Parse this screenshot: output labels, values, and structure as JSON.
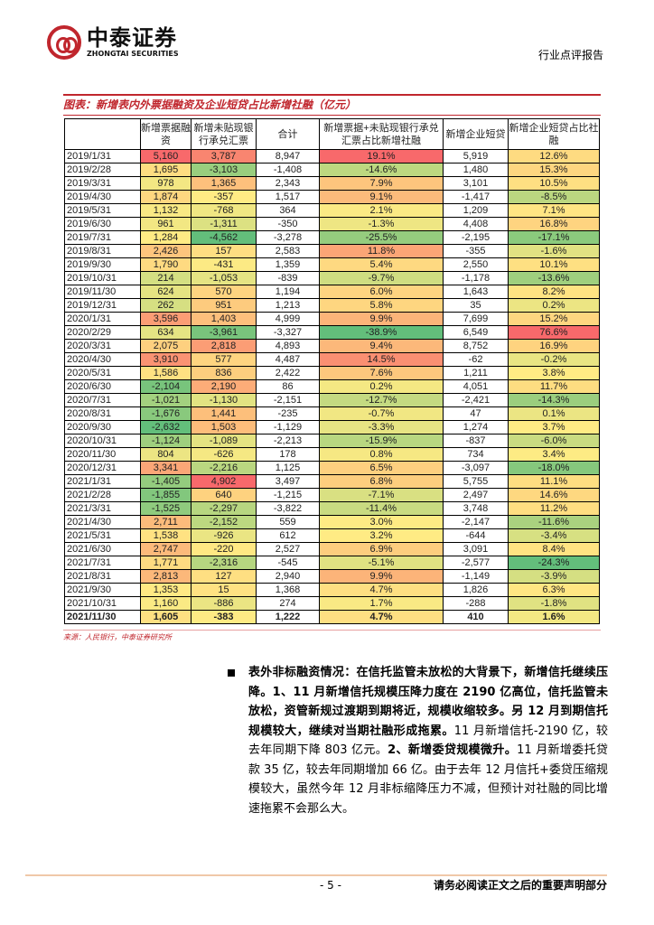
{
  "header": {
    "logo_cn": "中泰证券",
    "logo_en": "ZHONGTAI SECURITIES",
    "report_type": "行业点评报告"
  },
  "figure": {
    "title": "图表：新增表内外票据融资及企业短贷占比新增社融（亿元）",
    "columns": [
      "",
      "新增票据融资",
      "新增未贴现银行承兑汇票",
      "合计",
      "新增票据+未贴现银行承兑汇票占比新增社融",
      "新增企业短贷",
      "新增企业短贷占比社融"
    ],
    "rows": [
      [
        "2019/1/31",
        "5,160",
        "3,787",
        "8,947",
        "19.1%",
        "5,919",
        "12.6%"
      ],
      [
        "2019/2/28",
        "1,695",
        "-3,103",
        "-1,408",
        "-14.6%",
        "1,480",
        "15.3%"
      ],
      [
        "2019/3/31",
        "978",
        "1,365",
        "2,343",
        "7.9%",
        "3,101",
        "10.5%"
      ],
      [
        "2019/4/30",
        "1,874",
        "-357",
        "1,517",
        "9.1%",
        "-1,417",
        "-8.5%"
      ],
      [
        "2019/5/31",
        "1,132",
        "-768",
        "364",
        "2.1%",
        "1,209",
        "7.1%"
      ],
      [
        "2019/6/30",
        "961",
        "-1,311",
        "-350",
        "-1.3%",
        "4,408",
        "16.8%"
      ],
      [
        "2019/7/31",
        "1,284",
        "-4,562",
        "-3,278",
        "-25.5%",
        "-2,195",
        "-17.1%"
      ],
      [
        "2019/8/31",
        "2,426",
        "157",
        "2,583",
        "11.8%",
        "-355",
        "-1.6%"
      ],
      [
        "2019/9/30",
        "1,790",
        "-431",
        "1,359",
        "5.4%",
        "2,550",
        "10.1%"
      ],
      [
        "2019/10/31",
        "214",
        "-1,053",
        "-839",
        "-9.7%",
        "-1,178",
        "-13.6%"
      ],
      [
        "2019/11/30",
        "624",
        "570",
        "1,194",
        "6.0%",
        "1,643",
        "8.2%"
      ],
      [
        "2019/12/31",
        "262",
        "951",
        "1,213",
        "5.8%",
        "35",
        "0.2%"
      ],
      [
        "2020/1/31",
        "3,596",
        "1,403",
        "4,999",
        "9.9%",
        "7,699",
        "15.2%"
      ],
      [
        "2020/2/29",
        "634",
        "-3,961",
        "-3,327",
        "-38.9%",
        "6,549",
        "76.6%"
      ],
      [
        "2020/3/31",
        "2,075",
        "2,818",
        "4,893",
        "9.4%",
        "8,752",
        "16.9%"
      ],
      [
        "2020/4/30",
        "3,910",
        "577",
        "4,487",
        "14.5%",
        "-62",
        "-0.2%"
      ],
      [
        "2020/5/31",
        "1,586",
        "836",
        "2,422",
        "7.6%",
        "1,211",
        "3.8%"
      ],
      [
        "2020/6/30",
        "-2,104",
        "2,190",
        "86",
        "0.2%",
        "4,051",
        "11.7%"
      ],
      [
        "2020/7/31",
        "-1,021",
        "-1,130",
        "-2,151",
        "-12.7%",
        "-2,421",
        "-14.3%"
      ],
      [
        "2020/8/31",
        "-1,676",
        "1,441",
        "-235",
        "-0.7%",
        "47",
        "0.1%"
      ],
      [
        "2020/9/30",
        "-2,632",
        "1,503",
        "-1,129",
        "-3.3%",
        "1,274",
        "3.7%"
      ],
      [
        "2020/10/31",
        "-1,124",
        "-1,089",
        "-2,213",
        "-15.9%",
        "-837",
        "-6.0%"
      ],
      [
        "2020/11/30",
        "804",
        "-626",
        "178",
        "0.8%",
        "734",
        "3.4%"
      ],
      [
        "2020/12/31",
        "3,341",
        "-2,216",
        "1,125",
        "6.5%",
        "-3,097",
        "-18.0%"
      ],
      [
        "2021/1/31",
        "-1,405",
        "4,902",
        "3,497",
        "6.8%",
        "5,755",
        "11.1%"
      ],
      [
        "2021/2/28",
        "-1,855",
        "640",
        "-1,215",
        "-7.1%",
        "2,497",
        "14.6%"
      ],
      [
        "2021/3/31",
        "-1,525",
        "-2,297",
        "-3,822",
        "-11.4%",
        "3,748",
        "11.2%"
      ],
      [
        "2021/4/30",
        "2,711",
        "-2,152",
        "559",
        "3.0%",
        "-2,147",
        "-11.6%"
      ],
      [
        "2021/5/31",
        "1,538",
        "-926",
        "612",
        "3.2%",
        "-644",
        "-3.4%"
      ],
      [
        "2021/6/30",
        "2,747",
        "-220",
        "2,527",
        "6.9%",
        "3,091",
        "8.4%"
      ],
      [
        "2021/7/31",
        "1,771",
        "-2,316",
        "-545",
        "-5.1%",
        "-2,577",
        "-24.3%"
      ],
      [
        "2021/8/31",
        "2,813",
        "127",
        "2,940",
        "9.9%",
        "-1,149",
        "-3.9%"
      ],
      [
        "2021/9/30",
        "1,353",
        "15",
        "1,368",
        "4.7%",
        "1,826",
        "6.3%"
      ],
      [
        "2021/10/31",
        "1,160",
        "-886",
        "274",
        "1.7%",
        "-288",
        "-1.8%"
      ],
      [
        "2021/11/30",
        "1,605",
        "-383",
        "1,222",
        "4.7%",
        "410",
        "1.6%"
      ]
    ],
    "source": "来源：人民银行，中泰证券研究所",
    "scale_colors": {
      "low": "#63be7b",
      "mid": "#ffeb84",
      "high": "#f8696b"
    }
  },
  "body": {
    "segments": [
      {
        "t": "表外非标融资情况：在信托监管未放松的大背景下，新增信托继续压降。1、11 月新增信托规模压降力度在 2190 亿高位，信托监管未放松，资管新规过渡期到期将近，规模收缩较多。另 12 月到期信托规模较大，继续对当期社融形成拖累。",
        "b": true
      },
      {
        "t": "11 月新增信托-2190 亿，较去年同期下降 803 亿元。",
        "b": false
      },
      {
        "t": "2、新增委贷规模微升。",
        "b": true
      },
      {
        "t": "11 月新增委托贷款 35 亿，较去年同期增加 66 亿。由于去年 12 月信托+委贷压缩规模较大，虽然今年 12 月非标缩降压力不减，但预计对社融的同比增速拖累不会那么大。",
        "b": false
      }
    ]
  },
  "footer": {
    "page": "- 5 -",
    "note": "请务必阅读正文之后的重要声明部分"
  }
}
